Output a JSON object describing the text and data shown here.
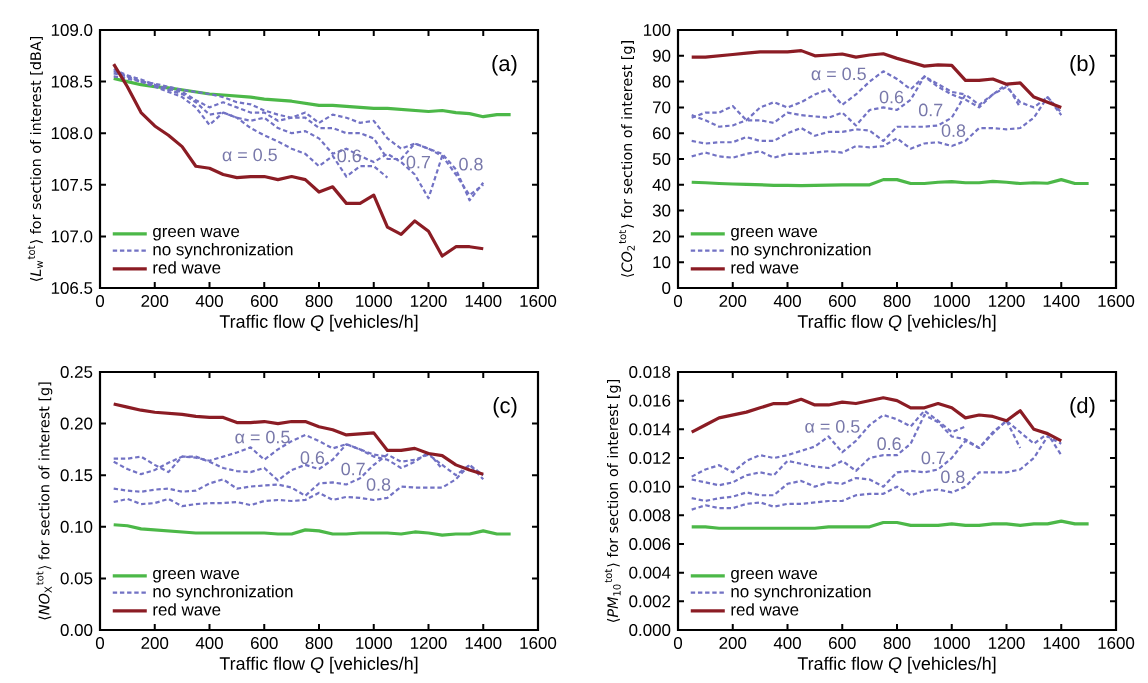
{
  "chart_data": [
    {
      "type": "line",
      "xlabel": "Traffic flow *Q* [vehicles/h]",
      "ylabel": "⟨*L*$_{w}$$^{tot}$⟩ for section of interest [dBA]",
      "annotations": [
        "(a)",
        "α = 0.5",
        "0.6",
        "0.7",
        "0.8"
      ],
      "x": [
        50,
        100,
        150,
        200,
        250,
        300,
        350,
        400,
        450,
        500,
        550,
        600,
        650,
        700,
        750,
        800,
        850,
        900,
        950,
        1000,
        1050,
        1100,
        1150,
        1200,
        1250,
        1300,
        1350,
        1400,
        1450,
        1500
      ],
      "series": [
        {
          "name": "green wave",
          "color": "#4cb848",
          "values": [
            108.53,
            108.5,
            108.47,
            108.45,
            108.44,
            108.42,
            108.4,
            108.38,
            108.37,
            108.36,
            108.35,
            108.33,
            108.32,
            108.31,
            108.29,
            108.27,
            108.27,
            108.26,
            108.25,
            108.24,
            108.24,
            108.23,
            108.22,
            108.21,
            108.22,
            108.2,
            108.19,
            108.16,
            108.18,
            108.18
          ]
        },
        {
          "name": "no synchronization",
          "color": "#7272c4",
          "line_style": "dashed",
          "values": [
            108.6,
            108.55,
            108.5,
            108.45,
            108.4,
            108.35,
            108.25,
            108.08,
            108.2,
            108.15,
            108.05,
            107.98,
            107.92,
            107.85,
            107.8,
            107.68,
            107.78,
            107.58,
            107.68,
            107.68,
            107.57,
            null,
            null,
            null,
            null,
            null,
            null,
            null,
            null,
            null
          ]
        },
        {
          "color": "#7272c4",
          "line_style": "dashed",
          "values": [
            108.62,
            108.56,
            108.52,
            108.47,
            108.42,
            108.38,
            108.3,
            108.18,
            108.2,
            108.15,
            108.12,
            108.15,
            108.05,
            108.0,
            108.02,
            107.95,
            107.8,
            107.85,
            107.78,
            107.72,
            107.8,
            107.72,
            107.6,
            107.37,
            107.78,
            null,
            null,
            null,
            null,
            null
          ]
        },
        {
          "color": "#7272c4",
          "line_style": "dashed",
          "values": [
            108.58,
            108.55,
            108.5,
            108.46,
            108.43,
            108.4,
            108.32,
            108.25,
            108.3,
            108.25,
            108.2,
            108.2,
            108.12,
            108.15,
            108.15,
            108.05,
            108.05,
            108.0,
            108.0,
            107.95,
            107.75,
            107.75,
            107.9,
            107.85,
            107.78,
            107.6,
            107.4,
            107.5,
            null,
            null
          ]
        },
        {
          "color": "#7272c4",
          "line_style": "dashed",
          "values": [
            108.55,
            108.53,
            108.5,
            108.48,
            108.45,
            108.42,
            108.4,
            108.38,
            108.35,
            108.3,
            108.28,
            108.22,
            108.18,
            108.15,
            108.2,
            108.1,
            108.18,
            108.15,
            108.1,
            108.12,
            107.95,
            107.85,
            107.9,
            107.85,
            107.8,
            107.65,
            107.35,
            107.52,
            null,
            null
          ]
        },
        {
          "name": "red wave",
          "color": "#8b1c24",
          "values": [
            108.67,
            108.45,
            108.2,
            108.07,
            107.98,
            107.87,
            107.68,
            107.66,
            107.6,
            107.57,
            107.58,
            107.58,
            107.55,
            107.58,
            107.55,
            107.43,
            107.48,
            107.32,
            107.32,
            107.4,
            107.09,
            107.02,
            107.15,
            107.05,
            106.81,
            106.9,
            106.9,
            106.88,
            null,
            null
          ]
        }
      ],
      "xlim": [
        0,
        1600
      ],
      "ylim": [
        106.5,
        109
      ],
      "xticks": [
        0,
        200,
        400,
        600,
        800,
        1000,
        1200,
        1400,
        1600
      ],
      "yticks": [
        {
          "value": 106.5,
          "label": "106.5"
        },
        {
          "value": 107,
          "label": "107.0"
        },
        {
          "value": 107.5,
          "label": "107.5"
        },
        {
          "value": 108,
          "label": "108.0"
        },
        {
          "value": 108.5,
          "label": "108.5"
        },
        {
          "value": 109,
          "label": "109.0"
        }
      ],
      "legend": "bottom left"
    },
    {
      "type": "line",
      "xlabel": "Traffic flow *Q* [vehicles/h]",
      "ylabel": "⟨*CO*$_{2}$$^{tot}$⟩ for section of interest [g]",
      "annotations": [
        "(b)",
        "α = 0.5",
        "0.6",
        "0.7",
        "0.8"
      ],
      "x": [
        50,
        100,
        150,
        200,
        250,
        300,
        350,
        400,
        450,
        500,
        550,
        600,
        650,
        700,
        750,
        800,
        850,
        900,
        950,
        1000,
        1050,
        1100,
        1150,
        1200,
        1250,
        1300,
        1350,
        1400,
        1450,
        1500
      ],
      "series": [
        {
          "name": "green wave",
          "color": "#4cb848",
          "values": [
            41,
            40.8,
            40.5,
            40.3,
            40.2,
            40,
            39.8,
            39.8,
            39.7,
            39.8,
            39.9,
            40,
            40,
            40,
            42,
            42,
            40.5,
            40.5,
            41,
            41.2,
            40.8,
            40.8,
            41.3,
            41,
            40.5,
            40.8,
            40.6,
            42,
            40.5,
            40.5
          ]
        },
        {
          "name": "no synchronization",
          "color": "#7272c4",
          "line_style": "dashed",
          "values": [
            67,
            65,
            62.5,
            63,
            65,
            70,
            72,
            70,
            72,
            75,
            77,
            71,
            75,
            80,
            84,
            81,
            77,
            82,
            79,
            76,
            75,
            null,
            null,
            null,
            null,
            null,
            null,
            null,
            null,
            null
          ]
        },
        {
          "color": "#7272c4",
          "line_style": "dashed",
          "values": [
            66,
            68,
            68,
            70.5,
            65,
            65,
            64,
            68,
            67,
            66.5,
            66,
            68,
            63,
            69,
            70,
            69,
            73,
            82,
            78,
            75,
            73,
            70,
            75,
            79,
            70,
            null,
            null,
            null,
            null,
            null
          ]
        },
        {
          "color": "#7272c4",
          "line_style": "dashed",
          "values": [
            57,
            56,
            56.5,
            56.5,
            58.5,
            57,
            57,
            60,
            62,
            59,
            60.5,
            60.5,
            61.5,
            61,
            57,
            62.5,
            62.5,
            62.5,
            63,
            66,
            75,
            71,
            75,
            78,
            72,
            70,
            74,
            68,
            null,
            null
          ]
        },
        {
          "color": "#7272c4",
          "line_style": "dashed",
          "values": [
            51,
            52.5,
            51,
            50.5,
            52,
            53,
            50.5,
            52,
            52,
            52.5,
            53,
            52.5,
            55,
            54.5,
            55,
            58,
            54,
            56,
            56.5,
            55,
            57,
            62,
            62,
            61.5,
            62,
            66,
            74,
            67,
            null,
            null
          ]
        },
        {
          "name": "red wave",
          "color": "#8b1c24",
          "values": [
            89.5,
            89.5,
            90,
            90.5,
            91,
            91.5,
            91.5,
            91.5,
            92,
            90,
            90.3,
            90.7,
            89.5,
            90.3,
            90.8,
            89,
            87.5,
            86,
            86.5,
            86.3,
            80.5,
            80.5,
            81,
            79,
            79.5,
            74,
            72,
            70,
            null,
            null
          ]
        }
      ],
      "xlim": [
        0,
        1600
      ],
      "ylim": [
        0,
        100
      ],
      "xticks": [
        0,
        200,
        400,
        600,
        800,
        1000,
        1200,
        1400,
        1600
      ],
      "yticks": [
        0,
        10,
        20,
        30,
        40,
        50,
        60,
        70,
        80,
        90,
        100
      ],
      "legend": "bottom left"
    },
    {
      "type": "line",
      "xlabel": "Traffic flow *Q* [vehicles/h]",
      "ylabel": "⟨*NO*$_{X}$$^{tot}$⟩ for section of interest [g]",
      "annotations": [
        "(c)",
        "α = 0.5",
        "0.6",
        "0.7",
        "0.8"
      ],
      "x": [
        50,
        100,
        150,
        200,
        250,
        300,
        350,
        400,
        450,
        500,
        550,
        600,
        650,
        700,
        750,
        800,
        850,
        900,
        950,
        1000,
        1050,
        1100,
        1150,
        1200,
        1250,
        1300,
        1350,
        1400,
        1450,
        1500
      ],
      "series": [
        {
          "name": "green wave",
          "color": "#4cb848",
          "values": [
            0.102,
            0.101,
            0.098,
            0.097,
            0.096,
            0.095,
            0.094,
            0.094,
            0.094,
            0.094,
            0.094,
            0.094,
            0.093,
            0.093,
            0.097,
            0.096,
            0.093,
            0.093,
            0.094,
            0.094,
            0.094,
            0.093,
            0.095,
            0.094,
            0.092,
            0.093,
            0.093,
            0.096,
            0.093,
            0.093
          ]
        },
        {
          "name": "no synchronization",
          "color": "#7272c4",
          "line_style": "dashed",
          "values": [
            0.163,
            0.156,
            0.151,
            0.155,
            0.162,
            0.168,
            0.167,
            0.164,
            0.168,
            0.172,
            0.177,
            0.165,
            0.175,
            0.183,
            0.189,
            0.183,
            0.176,
            0.18,
            0.175,
            0.17,
            0.168,
            null,
            null,
            null,
            null,
            null,
            null,
            null,
            null,
            null
          ]
        },
        {
          "color": "#7272c4",
          "line_style": "dashed",
          "values": [
            0.166,
            0.166,
            0.168,
            0.16,
            0.153,
            0.168,
            0.168,
            0.163,
            0.157,
            0.154,
            0.153,
            0.157,
            0.145,
            0.155,
            0.16,
            0.156,
            0.165,
            0.18,
            0.175,
            0.168,
            0.165,
            0.157,
            0.163,
            0.172,
            0.156,
            null,
            null,
            null,
            null,
            null
          ]
        },
        {
          "color": "#7272c4",
          "line_style": "dashed",
          "values": [
            0.137,
            0.135,
            0.134,
            0.136,
            0.137,
            0.134,
            0.135,
            0.142,
            0.146,
            0.137,
            0.139,
            0.14,
            0.141,
            0.138,
            0.13,
            0.142,
            0.143,
            0.141,
            0.147,
            0.16,
            0.17,
            0.163,
            0.165,
            0.17,
            0.16,
            0.15,
            0.16,
            0.15,
            null,
            null
          ]
        },
        {
          "color": "#7272c4",
          "line_style": "dashed",
          "values": [
            0.124,
            0.127,
            0.122,
            0.123,
            0.127,
            0.12,
            0.122,
            0.123,
            0.123,
            0.124,
            0.121,
            0.125,
            0.126,
            0.125,
            0.126,
            0.133,
            0.126,
            0.129,
            0.128,
            0.126,
            0.128,
            0.139,
            0.138,
            0.138,
            0.138,
            0.146,
            0.16,
            0.146,
            null,
            null
          ]
        },
        {
          "name": "red wave",
          "color": "#8b1c24",
          "values": [
            0.219,
            0.216,
            0.213,
            0.211,
            0.21,
            0.209,
            0.207,
            0.206,
            0.206,
            0.201,
            0.201,
            0.202,
            0.2,
            0.202,
            0.202,
            0.197,
            0.194,
            0.189,
            0.19,
            0.191,
            0.174,
            0.174,
            0.176,
            0.171,
            0.169,
            0.16,
            0.155,
            0.151,
            null,
            null
          ]
        }
      ],
      "xlim": [
        0,
        1600
      ],
      "ylim": [
        0,
        0.25
      ],
      "xticks": [
        0,
        200,
        400,
        600,
        800,
        1000,
        1200,
        1400,
        1600
      ],
      "yticks": [
        {
          "value": 0,
          "label": "0.00"
        },
        {
          "value": 0.05,
          "label": "0.05"
        },
        {
          "value": 0.1,
          "label": "0.10"
        },
        {
          "value": 0.15,
          "label": "0.15"
        },
        {
          "value": 0.2,
          "label": "0.20"
        },
        {
          "value": 0.25,
          "label": "0.25"
        }
      ],
      "legend": "bottom left"
    },
    {
      "type": "line",
      "xlabel": "Traffic flow *Q* [vehicles/h]",
      "ylabel": "⟨*PM*$_{10}$$^{tot}$⟩ for section of interest [g]",
      "annotations": [
        "(d)",
        "α = 0.5",
        "0.6",
        "0.7",
        "0.8"
      ],
      "x": [
        50,
        100,
        150,
        200,
        250,
        300,
        350,
        400,
        450,
        500,
        550,
        600,
        650,
        700,
        750,
        800,
        850,
        900,
        950,
        1000,
        1050,
        1100,
        1150,
        1200,
        1250,
        1300,
        1350,
        1400,
        1450,
        1500
      ],
      "series": [
        {
          "name": "green wave",
          "color": "#4cb848",
          "values": [
            0.0072,
            0.0072,
            0.0071,
            0.0071,
            0.0071,
            0.0071,
            0.0071,
            0.0071,
            0.0071,
            0.0071,
            0.0072,
            0.0072,
            0.0072,
            0.0072,
            0.0075,
            0.0075,
            0.0073,
            0.0073,
            0.0073,
            0.0074,
            0.0073,
            0.0073,
            0.0074,
            0.0074,
            0.0073,
            0.0074,
            0.0074,
            0.0076,
            0.0074,
            0.0074
          ]
        },
        {
          "name": "no synchronization",
          "color": "#7272c4",
          "line_style": "dashed",
          "values": [
            0.0107,
            0.0112,
            0.0115,
            0.011,
            0.0118,
            0.0122,
            0.012,
            0.0122,
            0.0125,
            0.0128,
            0.0135,
            0.0124,
            0.0132,
            0.0143,
            0.015,
            0.0147,
            0.0142,
            0.0153,
            0.0146,
            0.0138,
            0.0142,
            null,
            null,
            null,
            null,
            null,
            null,
            null,
            null,
            null
          ]
        },
        {
          "color": "#7272c4",
          "line_style": "dashed",
          "values": [
            0.0105,
            0.0103,
            0.0101,
            0.0103,
            0.0108,
            0.011,
            0.0108,
            0.0118,
            0.0116,
            0.0114,
            0.0113,
            0.0118,
            0.0111,
            0.012,
            0.0122,
            0.0122,
            0.013,
            0.015,
            0.0145,
            0.0135,
            0.0133,
            0.0127,
            0.0138,
            0.0146,
            0.0127,
            null,
            null,
            null,
            null,
            null
          ]
        },
        {
          "color": "#7272c4",
          "line_style": "dashed",
          "values": [
            0.0092,
            0.009,
            0.0092,
            0.0093,
            0.0096,
            0.0094,
            0.0094,
            0.0102,
            0.0104,
            0.01,
            0.0103,
            0.0102,
            0.0106,
            0.0105,
            0.01,
            0.011,
            0.0111,
            0.011,
            0.0112,
            0.012,
            0.0132,
            0.0127,
            0.0137,
            0.0146,
            0.0138,
            0.013,
            0.0137,
            0.0122,
            null,
            null
          ]
        },
        {
          "color": "#7272c4",
          "line_style": "dashed",
          "values": [
            0.0084,
            0.0087,
            0.0085,
            0.0085,
            0.0088,
            0.0089,
            0.0086,
            0.0088,
            0.0088,
            0.0089,
            0.009,
            0.009,
            0.0094,
            0.0095,
            0.0095,
            0.01,
            0.0094,
            0.0097,
            0.0098,
            0.0096,
            0.01,
            0.011,
            0.011,
            0.011,
            0.0112,
            0.012,
            0.0135,
            0.013,
            null,
            null
          ]
        },
        {
          "name": "red wave",
          "color": "#8b1c24",
          "values": [
            0.0138,
            0.0143,
            0.0148,
            0.015,
            0.0152,
            0.0155,
            0.0158,
            0.0158,
            0.0161,
            0.0157,
            0.0157,
            0.0159,
            0.0158,
            0.016,
            0.0162,
            0.016,
            0.0155,
            0.0155,
            0.0158,
            0.0155,
            0.0148,
            0.015,
            0.0149,
            0.0146,
            0.0153,
            0.014,
            0.0137,
            0.0132,
            null,
            null
          ]
        }
      ],
      "xlim": [
        0,
        1600
      ],
      "ylim": [
        0,
        0.018
      ],
      "xticks": [
        0,
        200,
        400,
        600,
        800,
        1000,
        1200,
        1400,
        1600
      ],
      "yticks": [
        {
          "value": 0,
          "label": "0.000"
        },
        {
          "value": 0.002,
          "label": "0.002"
        },
        {
          "value": 0.004,
          "label": "0.004"
        },
        {
          "value": 0.006,
          "label": "0.006"
        },
        {
          "value": 0.008,
          "label": "0.008"
        },
        {
          "value": 0.01,
          "label": "0.010"
        },
        {
          "value": 0.012,
          "label": "0.012"
        },
        {
          "value": 0.014,
          "label": "0.014"
        },
        {
          "value": 0.016,
          "label": "0.016"
        },
        {
          "value": 0.018,
          "label": "0.018"
        }
      ],
      "legend": "bottom left"
    }
  ]
}
